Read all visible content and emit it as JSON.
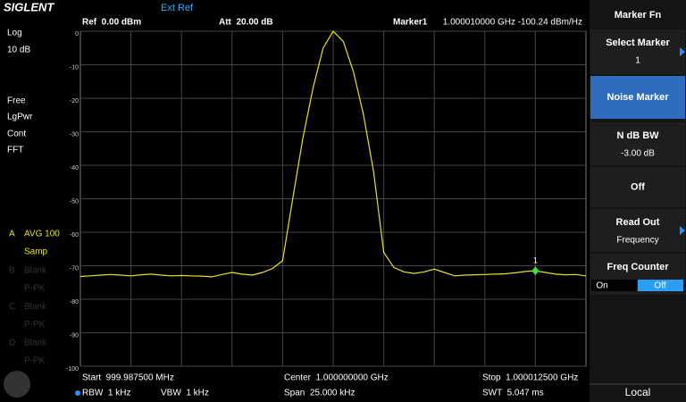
{
  "header": {
    "logo": "SIGLENT",
    "ref_source": "Ext Ref",
    "ref_level": "Ref  0.00 dBm",
    "attenuation": "Att  20.00 dB",
    "marker_name": "Marker1",
    "marker_readout": "1.000010000 GHz -100.24 dBm/Hz"
  },
  "left_panel": {
    "scale_type": "Log",
    "scale_div": "10 dB",
    "trigger": "Free",
    "detector": "LgPwr",
    "sweep_mode": "Cont",
    "sweep_type": "FFT",
    "traces": [
      {
        "letter": "A",
        "mode": "AVG 100",
        "detector": "Samp"
      },
      {
        "letter": "B",
        "mode": "Blank",
        "detector": "P-PK"
      },
      {
        "letter": "C",
        "mode": "Blank",
        "detector": "P-PK"
      },
      {
        "letter": "D",
        "mode": "Blank",
        "detector": "P-PK"
      }
    ]
  },
  "footer": {
    "start": "Start  999.987500 MHz",
    "center": "Center  1.000000000 GHz",
    "stop": "Stop  1.000012500 GHz",
    "rbw": "RBW  1 kHz",
    "vbw": "VBW  1 kHz",
    "span": "Span  25.000 kHz",
    "swt": "SWT  5.047 ms"
  },
  "softkeys": {
    "title": "Marker Fn",
    "buttons": [
      {
        "label": "Select Marker",
        "value": "1"
      },
      {
        "label": "Noise Marker"
      },
      {
        "label": "N dB BW",
        "value": "-3.00 dB"
      },
      {
        "label": "Off"
      },
      {
        "label": "Read Out",
        "value": "Frequency"
      },
      {
        "label": "Freq Counter",
        "options": [
          "On",
          "Off"
        ]
      }
    ],
    "status": "Local"
  },
  "chart_data": {
    "type": "line",
    "color": "#e8e020",
    "grid": true,
    "ylim": [
      -100,
      0
    ],
    "yticks": [
      0,
      -10,
      -20,
      -30,
      -40,
      -50,
      -60,
      -70,
      -80,
      -90,
      -100
    ],
    "values": [
      -73.2,
      -73,
      -72.8,
      -72.6,
      -72.8,
      -73,
      -72.7,
      -72.5,
      -72.8,
      -73,
      -72.9,
      -73,
      -73.1,
      -73.3,
      -72.6,
      -72,
      -72.5,
      -72.8,
      -72,
      -70.8,
      -68.5,
      -50,
      -32,
      -17,
      -5,
      0,
      -3,
      -12,
      -25,
      -42,
      -66,
      -70.5,
      -71.8,
      -72.3,
      -71.8,
      -71,
      -72,
      -73,
      -72.8,
      -72.7,
      -72.6,
      -72.5,
      -72.4,
      -72.1,
      -71.7,
      -71.5,
      -72,
      -72.5,
      -72.7,
      -72.6,
      -73
    ],
    "marker_label": "1",
    "marker_color": "#3de03d"
  }
}
